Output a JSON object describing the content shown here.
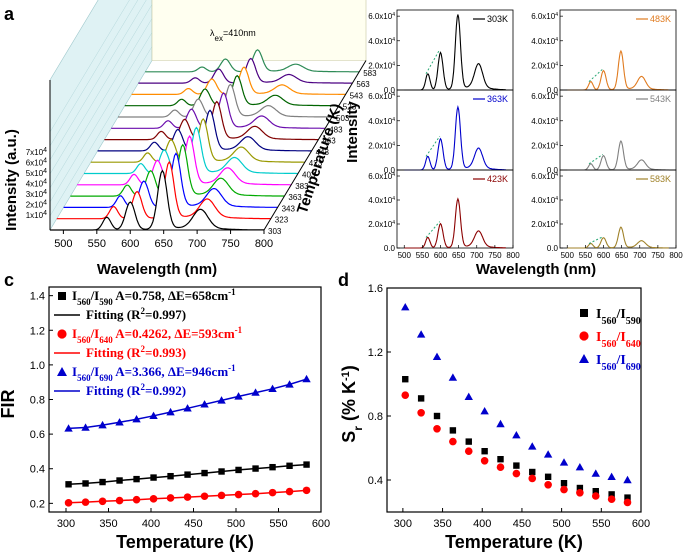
{
  "chart_data": [
    {
      "panel": "a",
      "type": "line",
      "title": "",
      "annotation_prefix": "λ",
      "annotation_sub": "ex",
      "annotation_value": "=410nm",
      "xlabel": "Wavelength (nm)",
      "ylabel": "Intensity (a.u.)",
      "zlabel": "Temperature (K)",
      "xlim": [
        480,
        800
      ],
      "x_ticks": [
        "500",
        "550",
        "600",
        "650",
        "700",
        "750",
        "800"
      ],
      "y_ticks": [
        {
          "base": "1x10",
          "exp": "4"
        },
        {
          "base": "2x10",
          "exp": "4"
        },
        {
          "base": "3x10",
          "exp": "4"
        },
        {
          "base": "4x10",
          "exp": "4"
        },
        {
          "base": "5x10",
          "exp": "4"
        },
        {
          "base": "6x10",
          "exp": "4"
        },
        {
          "base": "7x10",
          "exp": "4"
        }
      ],
      "temperatures": [
        "303",
        "323",
        "343",
        "363",
        "383",
        "403",
        "423",
        "443",
        "463",
        "483",
        "503",
        "523",
        "543",
        "563",
        "583"
      ],
      "series_colors": [
        "#000000",
        "#ff0000",
        "#0000ff",
        "#00aa00",
        "#ff00ff",
        "#00cccc",
        "#999900",
        "#000080",
        "#800000",
        "#6a0dad",
        "#808080",
        "#006400",
        "#ff8c00",
        "#4b0082",
        "#2e8b57"
      ],
      "peaks_nm": [
        565,
        600,
        648,
        705
      ],
      "relative_intensity_303K": [
        0.25,
        0.68,
        1.0,
        0.36
      ]
    },
    {
      "panel": "b",
      "type": "line",
      "xlabel": "Wavelength (nm)",
      "ylabel": "Intensity",
      "xlim": [
        480,
        800
      ],
      "x_ticks": [
        "500",
        "550",
        "600",
        "650",
        "700",
        "750",
        "800"
      ],
      "y_ticks_left": [
        {
          "base": "0.0",
          "exp": ""
        },
        {
          "base": "2.0x10",
          "exp": "4"
        },
        {
          "base": "4.0x10",
          "exp": "4"
        },
        {
          "base": "6.0x10",
          "exp": "4"
        }
      ],
      "y_ticks_right": [
        {
          "base": "0.0",
          "exp": ""
        },
        {
          "base": "2.0x10",
          "exp": "4"
        },
        {
          "base": "4.0x10",
          "exp": "4"
        },
        {
          "base": "6.0x10",
          "exp": "4"
        }
      ],
      "ylim": [
        0,
        65000
      ],
      "subplots": [
        {
          "label": "303K",
          "color": "#000000",
          "peak_max": 60000
        },
        {
          "label": "483K",
          "color": "#e07b20",
          "peak_max": 31000
        },
        {
          "label": "363K",
          "color": "#0000cc",
          "peak_max": 50000
        },
        {
          "label": "543K",
          "color": "#808080",
          "peak_max": 23000
        },
        {
          "label": "423K",
          "color": "#8b0000",
          "peak_max": 40000
        },
        {
          "label": "583K",
          "color": "#a0822a",
          "peak_max": 17000
        }
      ]
    },
    {
      "panel": "c",
      "type": "scatter",
      "xlabel": "Temperature (K)",
      "ylabel": "FIR",
      "xlim": [
        280,
        600
      ],
      "ylim": [
        0.15,
        1.45
      ],
      "x_ticks": [
        "300",
        "350",
        "400",
        "450",
        "500",
        "550",
        "600"
      ],
      "y_ticks": [
        "0.2",
        "0.4",
        "0.6",
        "0.8",
        "1.0",
        "1.2",
        "1.4"
      ],
      "x": [
        303,
        323,
        343,
        363,
        383,
        403,
        423,
        443,
        463,
        483,
        503,
        523,
        543,
        563,
        583
      ],
      "series": [
        {
          "name": "I560/I590",
          "marker": "square",
          "color": "#000000",
          "values": [
            0.31,
            0.315,
            0.323,
            0.332,
            0.34,
            0.349,
            0.357,
            0.366,
            0.375,
            0.384,
            0.393,
            0.401,
            0.409,
            0.417,
            0.424
          ]
        },
        {
          "name": "I560/I640",
          "marker": "circle",
          "color": "#ff0000",
          "values": [
            0.203,
            0.207,
            0.212,
            0.216,
            0.221,
            0.226,
            0.231,
            0.236,
            0.241,
            0.246,
            0.251,
            0.256,
            0.262,
            0.268,
            0.275
          ]
        },
        {
          "name": "I560/I690",
          "marker": "triangle",
          "color": "#0000cc",
          "values": [
            0.633,
            0.638,
            0.652,
            0.668,
            0.686,
            0.706,
            0.727,
            0.749,
            0.772,
            0.795,
            0.818,
            0.84,
            0.862,
            0.887,
            0.918
          ]
        }
      ],
      "legend": [
        {
          "sym": "square",
          "color": "#000000",
          "i_a": "560",
          "i_b": "590",
          "params": "A=0.758, ΔE=658cm",
          "sup": "-1"
        },
        {
          "sym": "line",
          "color": "#000000",
          "text": "Fitting (R",
          "sup": "2",
          "text2": "=0.997)"
        },
        {
          "sym": "circle",
          "color": "#ff0000",
          "i_a": "560",
          "i_b": "640",
          "params": "A=0.4262, ΔE=593cm",
          "sup": "-1"
        },
        {
          "sym": "line",
          "color": "#ff0000",
          "text": "Fitting (R",
          "sup": "2",
          "text2": "=0.993)"
        },
        {
          "sym": "triangle",
          "color": "#0000cc",
          "i_a": "560",
          "i_b": "690",
          "params": "A=3.366, ΔE=946cm",
          "sup": "-1"
        },
        {
          "sym": "line",
          "color": "#0000cc",
          "text": "Fitting (R",
          "sup": "2",
          "text2": "=0.992)"
        }
      ]
    },
    {
      "panel": "d",
      "type": "scatter",
      "xlabel": "Temperature (K)",
      "ylabel_main": "S",
      "ylabel_sub": "r",
      "ylabel_unit": " (% K",
      "ylabel_sup": "-1",
      "ylabel_close": ")",
      "xlim": [
        280,
        600
      ],
      "ylim": [
        0.2,
        1.6
      ],
      "x_ticks": [
        "300",
        "350",
        "400",
        "450",
        "500",
        "550",
        "600"
      ],
      "y_ticks": [
        "0.4",
        "0.8",
        "1.2",
        "1.6"
      ],
      "x": [
        303,
        323,
        343,
        363,
        383,
        403,
        423,
        443,
        463,
        483,
        503,
        523,
        543,
        563,
        583
      ],
      "series": [
        {
          "name": "I560/I590",
          "marker": "square",
          "color": "#000000",
          "values": [
            1.03,
            0.91,
            0.8,
            0.71,
            0.64,
            0.58,
            0.53,
            0.49,
            0.45,
            0.42,
            0.38,
            0.35,
            0.33,
            0.31,
            0.29
          ]
        },
        {
          "name": "I560/I640",
          "marker": "circle",
          "color": "#ff0000",
          "values": [
            0.93,
            0.82,
            0.72,
            0.64,
            0.58,
            0.52,
            0.48,
            0.44,
            0.41,
            0.37,
            0.34,
            0.32,
            0.3,
            0.28,
            0.26
          ]
        },
        {
          "name": "I560/I690",
          "marker": "triangle",
          "color": "#0000cc",
          "values": [
            1.48,
            1.31,
            1.17,
            1.04,
            0.92,
            0.83,
            0.75,
            0.68,
            0.61,
            0.56,
            0.51,
            0.48,
            0.44,
            0.42,
            0.4
          ]
        }
      ],
      "legend": [
        {
          "sym": "square",
          "color": "#000000",
          "i_a": "560",
          "i_b": "590"
        },
        {
          "sym": "circle",
          "color": "#ff0000",
          "i_a": "560",
          "i_b": "640"
        },
        {
          "sym": "triangle",
          "color": "#0000cc",
          "i_a": "560",
          "i_b": "690"
        }
      ]
    }
  ],
  "labels": {
    "a": "a",
    "b": "b",
    "c": "c",
    "d": "d"
  }
}
